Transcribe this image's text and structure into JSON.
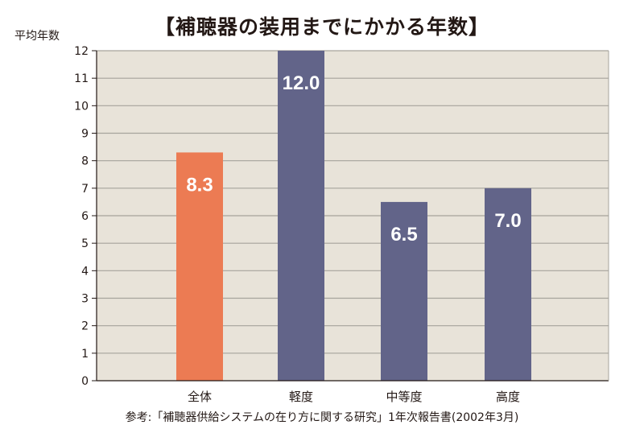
{
  "title": "【補聴器の装用までにかかる年数】",
  "y_unit_label": "平均年数",
  "source": "参考:「補聴器供給システムの在り方に関する研究」1年次報告書(2002年3月)",
  "colors": {
    "background": "#e8e3d9",
    "highlight": "#ec7b53",
    "bar": "#626489",
    "grid": "#a6a39c"
  },
  "chart_data": {
    "type": "bar",
    "categories": [
      "全体",
      "軽度",
      "中等度",
      "高度"
    ],
    "values": [
      8.3,
      12.0,
      6.5,
      7.0
    ],
    "value_labels": [
      "8.3",
      "12.0",
      "6.5",
      "7.0"
    ],
    "ylim": [
      0,
      12
    ],
    "yticks": [
      0,
      1,
      2,
      3,
      4,
      5,
      6,
      7,
      8,
      9,
      10,
      11,
      12
    ],
    "ylabel": "平均年数",
    "xlabel": "",
    "grid": true,
    "highlight_index": 0
  }
}
